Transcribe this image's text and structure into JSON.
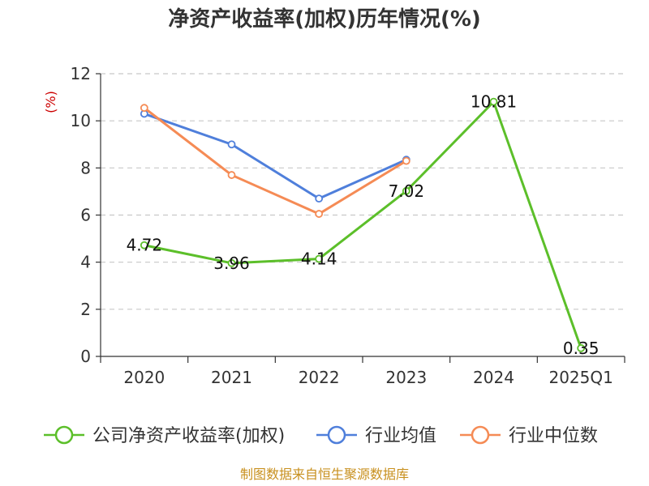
{
  "chart_data": {
    "type": "line",
    "title": "净资产收益率(加权)历年情况(%)",
    "ylabel": "(%)",
    "xlabel": "",
    "categories": [
      "2020",
      "2021",
      "2022",
      "2023",
      "2024",
      "2025Q1"
    ],
    "ylim": [
      0,
      12
    ],
    "yticks": [
      0,
      2,
      4,
      6,
      8,
      10,
      12
    ],
    "grid": true,
    "legend_position": "bottom",
    "series": [
      {
        "name": "公司净资产收益率(加权)",
        "color": "#5cbf2a",
        "values": [
          4.72,
          3.96,
          4.14,
          7.02,
          10.81,
          0.35
        ],
        "labels": [
          "4.72",
          "3.96",
          "4.14",
          "7.02",
          "10.81",
          "0.35"
        ]
      },
      {
        "name": "行业均值",
        "color": "#4f7fdb",
        "values": [
          10.3,
          9.0,
          6.7,
          8.35,
          null,
          null
        ]
      },
      {
        "name": "行业中位数",
        "color": "#f58b55",
        "values": [
          10.55,
          7.7,
          6.05,
          8.3,
          null,
          null
        ]
      }
    ],
    "source": "制图数据来自恒生聚源数据库"
  }
}
